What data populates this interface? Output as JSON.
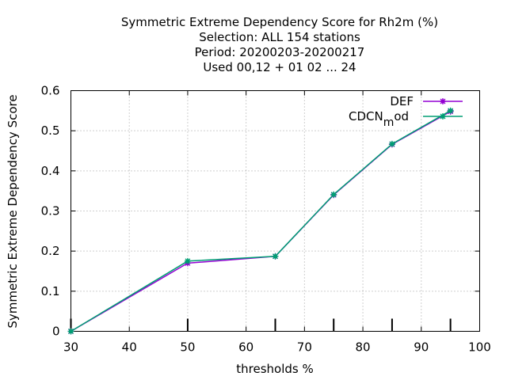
{
  "chart_data": {
    "type": "line",
    "title_lines": [
      "Symmetric Extreme Dependency Score  for Rh2m (%)",
      "Selection: ALL    154 stations",
      "Period: 20200203-20200217",
      "Used  00,12  + 01 02 ... 24"
    ],
    "xlabel": "thresholds %",
    "ylabel": "Symmetric Extreme Dependency Score",
    "xlim": [
      30,
      100
    ],
    "ylim": [
      0,
      0.6
    ],
    "xticks": [
      30,
      40,
      50,
      60,
      70,
      80,
      90,
      100
    ],
    "xtick_labels": [
      "30",
      "40",
      "50",
      "60",
      "70",
      "80",
      "90",
      "100"
    ],
    "yticks": [
      0,
      0.1,
      0.2,
      0.3,
      0.4,
      0.5,
      0.6
    ],
    "ytick_labels": [
      "0",
      "0.1",
      "0.2",
      "0.3",
      "0.4",
      "0.5",
      "0.6"
    ],
    "threshold_marks": [
      30,
      50,
      65,
      75,
      85,
      95
    ],
    "grid": true,
    "legend_position": "top-right",
    "series": [
      {
        "name": "DEF",
        "color": "#9400d3",
        "x": [
          30,
          50,
          65,
          75,
          85,
          95
        ],
        "y": [
          0.0,
          0.17,
          0.187,
          0.34,
          0.466,
          0.548
        ]
      },
      {
        "name_main": "CDCN",
        "name_sub": "m",
        "name_tail": "od",
        "color": "#009e73",
        "x": [
          30,
          50,
          65,
          75,
          85,
          95
        ],
        "y": [
          0.0,
          0.175,
          0.187,
          0.341,
          0.467,
          0.55
        ]
      }
    ]
  }
}
